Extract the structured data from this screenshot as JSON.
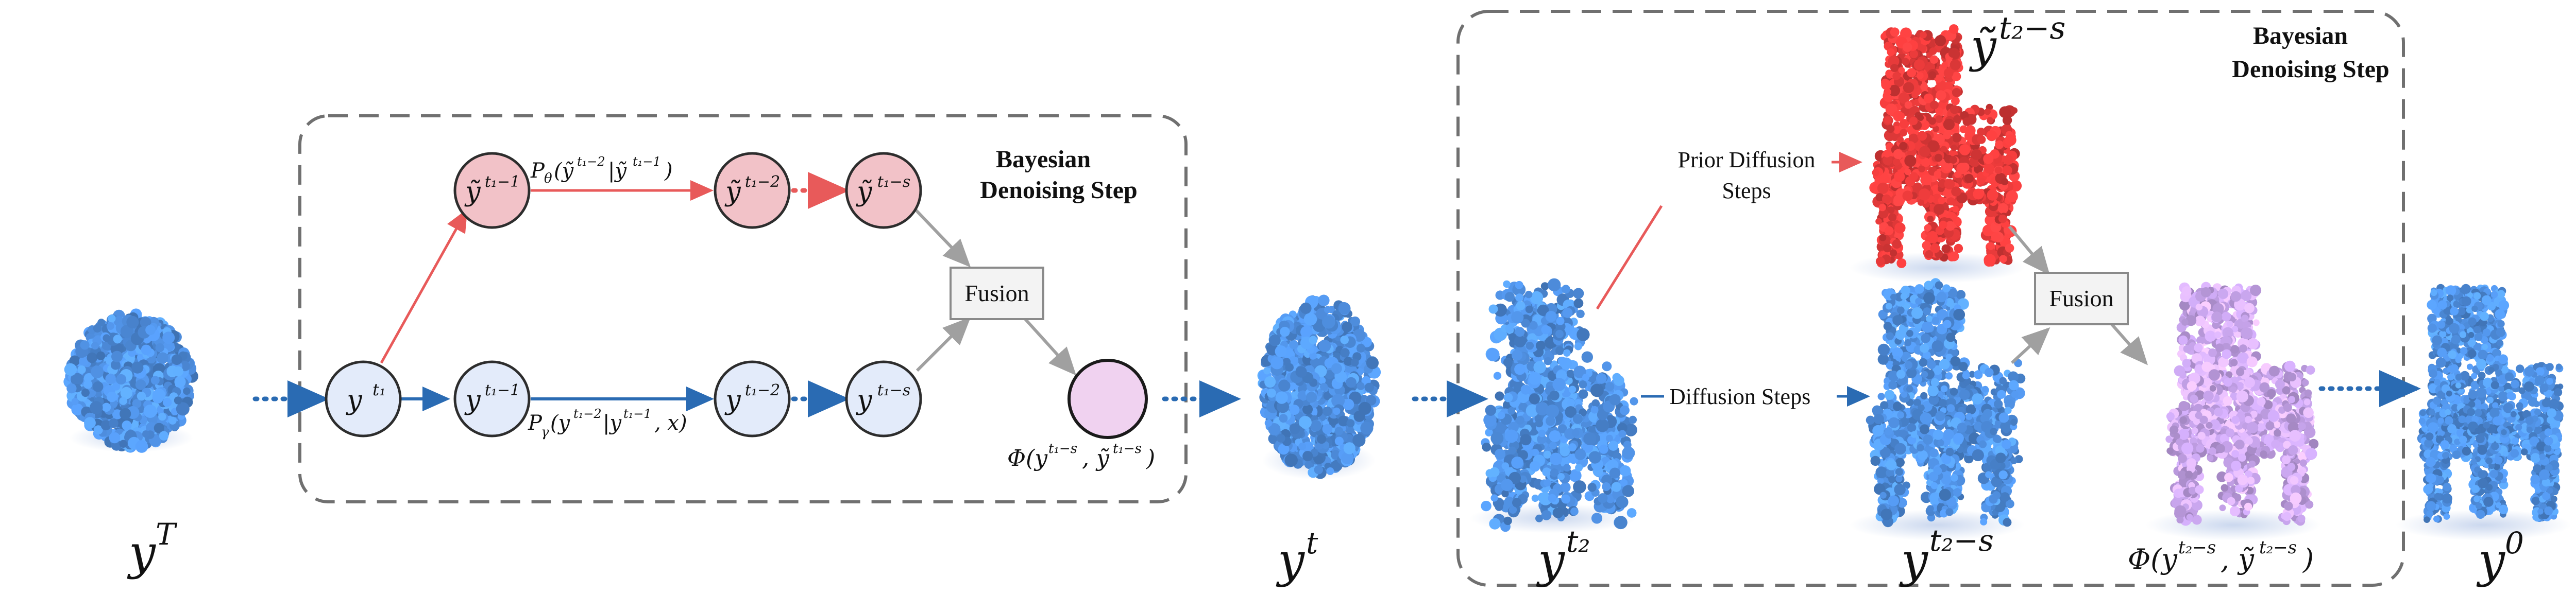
{
  "colors": {
    "noise_blue": "#4f8fe0",
    "prior_red": "#e63a3a",
    "fused_purple": "#c9a6ee",
    "node_blue_fill": "#e3ebfa",
    "node_red_fill": "#f2c2c8",
    "node_purple_fill": "#f0d2f0",
    "arrow_blue": "#2a6bb3",
    "arrow_red": "#e85a5a",
    "arrow_gray": "#a0a0a0",
    "box_dash": "#707070"
  },
  "left_panel": {
    "title_line1": "Bayesian",
    "title_line2": "Denoising Step",
    "fusion_label": "Fusion",
    "nodes": {
      "y_t1": "y",
      "y_t1_sup": "t₁",
      "y_t1m1": "y",
      "y_t1m1_sup": "t₁−1",
      "y_t1m2": "y",
      "y_t1m2_sup": "t₁−2",
      "y_t1ms": "y",
      "y_t1ms_sup": "t₁−s",
      "ty_t1m1": "ỹ",
      "ty_t1m1_sup": "t₁−1",
      "ty_t1m2": "ỹ",
      "ty_t1m2_sup": "t₁−2",
      "ty_t1ms": "ỹ",
      "ty_t1ms_sup": "t₁−s"
    },
    "prior_prob_label": "P",
    "prior_prob_sub": "θ",
    "prior_prob_args": "(ỹ",
    "prior_prob_args_sup1": "t₁−2",
    "prior_prob_mid": "|ỹ",
    "prior_prob_args_sup2": "t₁−1",
    "prior_prob_close": ")",
    "cond_prob_label": "P",
    "cond_prob_sub": "γ",
    "cond_prob_args": "(y",
    "cond_prob_args_sup1": "t₁−2",
    "cond_prob_mid": "|y",
    "cond_prob_args_sup2": "t₁−1",
    "cond_prob_close": ", x)",
    "phi_label": "Φ(y",
    "phi_sup1": "t₁−s",
    "phi_mid": ", ỹ",
    "phi_sup2": "t₁−s",
    "phi_close": ")"
  },
  "right_panel": {
    "title_line1": "Bayesian",
    "title_line2": "Denoising Step",
    "fusion_label": "Fusion",
    "prior_steps_line1": "Prior Diffusion",
    "prior_steps_line2": "Steps",
    "diffusion_steps": "Diffusion Steps",
    "ty_top": "ỹ",
    "ty_top_sup": "t₂−s",
    "y_t2": "y",
    "y_t2_sup": "t₂",
    "y_t2ms": "y",
    "y_t2ms_sup": "t₂−s",
    "phi_label": "Φ(y",
    "phi_sup1": "t₂−s",
    "phi_mid": ", ỹ",
    "phi_sup2": "t₂−s",
    "phi_close": ")"
  },
  "bottom_labels": {
    "yT": "y",
    "yT_sup": "T",
    "yt": "y",
    "yt_sup": "t",
    "y0": "y",
    "y0_sup": "0"
  }
}
